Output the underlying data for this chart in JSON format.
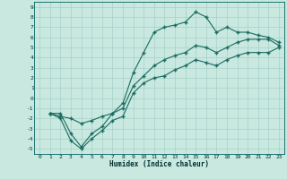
{
  "xlabel": "Humidex (Indice chaleur)",
  "bg_color": "#c8e8e0",
  "line_color": "#1a6b60",
  "grid_color": "#a8d0c8",
  "xlim": [
    -0.5,
    23.5
  ],
  "ylim": [
    -5.5,
    9.5
  ],
  "xticks": [
    0,
    1,
    2,
    3,
    4,
    5,
    6,
    7,
    8,
    9,
    10,
    11,
    12,
    13,
    14,
    15,
    16,
    17,
    18,
    19,
    20,
    21,
    22,
    23
  ],
  "yticks": [
    -5,
    -4,
    -3,
    -2,
    -1,
    0,
    1,
    2,
    3,
    4,
    5,
    6,
    7,
    8,
    9
  ],
  "line_max": [
    [
      1,
      -1.5
    ],
    [
      2,
      -1.5
    ],
    [
      3,
      -3.5
    ],
    [
      4,
      -4.8
    ],
    [
      5,
      -3.5
    ],
    [
      6,
      -2.8
    ],
    [
      7,
      -1.5
    ],
    [
      8,
      -0.5
    ],
    [
      9,
      2.5
    ],
    [
      10,
      4.5
    ],
    [
      11,
      6.5
    ],
    [
      12,
      7.0
    ],
    [
      13,
      7.2
    ],
    [
      14,
      7.5
    ],
    [
      15,
      8.5
    ],
    [
      16,
      8.0
    ],
    [
      17,
      6.5
    ],
    [
      18,
      7.0
    ],
    [
      19,
      6.5
    ],
    [
      20,
      6.5
    ],
    [
      21,
      6.2
    ],
    [
      22,
      6.0
    ],
    [
      23,
      5.5
    ]
  ],
  "line_mean": [
    [
      1,
      -1.5
    ],
    [
      2,
      -1.8
    ],
    [
      3,
      -2.0
    ],
    [
      4,
      -2.5
    ],
    [
      5,
      -2.2
    ],
    [
      6,
      -1.8
    ],
    [
      7,
      -1.5
    ],
    [
      8,
      -1.0
    ],
    [
      9,
      1.2
    ],
    [
      10,
      2.2
    ],
    [
      11,
      3.2
    ],
    [
      12,
      3.8
    ],
    [
      13,
      4.2
    ],
    [
      14,
      4.5
    ],
    [
      15,
      5.2
    ],
    [
      16,
      5.0
    ],
    [
      17,
      4.5
    ],
    [
      18,
      5.0
    ],
    [
      19,
      5.5
    ],
    [
      20,
      5.8
    ],
    [
      21,
      5.8
    ],
    [
      22,
      5.8
    ],
    [
      23,
      5.2
    ]
  ],
  "line_min": [
    [
      1,
      -1.5
    ],
    [
      2,
      -2.0
    ],
    [
      3,
      -4.2
    ],
    [
      4,
      -5.0
    ],
    [
      5,
      -4.0
    ],
    [
      6,
      -3.2
    ],
    [
      7,
      -2.2
    ],
    [
      8,
      -1.8
    ],
    [
      9,
      0.5
    ],
    [
      10,
      1.5
    ],
    [
      11,
      2.0
    ],
    [
      12,
      2.2
    ],
    [
      13,
      2.8
    ],
    [
      14,
      3.2
    ],
    [
      15,
      3.8
    ],
    [
      16,
      3.5
    ],
    [
      17,
      3.2
    ],
    [
      18,
      3.8
    ],
    [
      19,
      4.2
    ],
    [
      20,
      4.5
    ],
    [
      21,
      4.5
    ],
    [
      22,
      4.5
    ],
    [
      23,
      5.0
    ]
  ]
}
